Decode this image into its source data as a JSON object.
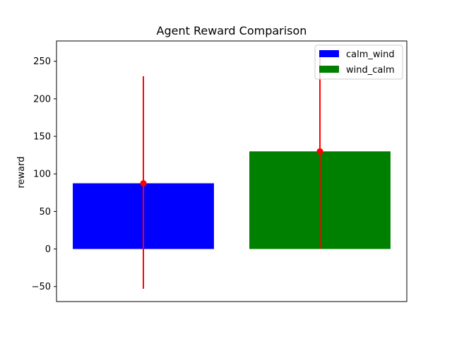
{
  "chart_data": {
    "type": "bar",
    "title": "Agent Reward Comparison",
    "xlabel": "",
    "ylabel": "reward",
    "ylim": [
      -70,
      277
    ],
    "yticks": [
      -50,
      0,
      50,
      100,
      150,
      200,
      250
    ],
    "ytick_labels": [
      "−50",
      "0",
      "50",
      "100",
      "150",
      "200",
      "250"
    ],
    "xticks_visible": false,
    "grid": false,
    "legend_position": "top-right",
    "series": [
      {
        "name": "calm_wind",
        "value": 87.5,
        "error_low": -53,
        "error_high": 230,
        "color": "#0000ff"
      },
      {
        "name": "wind_calm",
        "value": 130,
        "error_low": 0,
        "error_high": 264,
        "color": "#008000"
      }
    ],
    "error_bar_color": "#ff0000"
  }
}
